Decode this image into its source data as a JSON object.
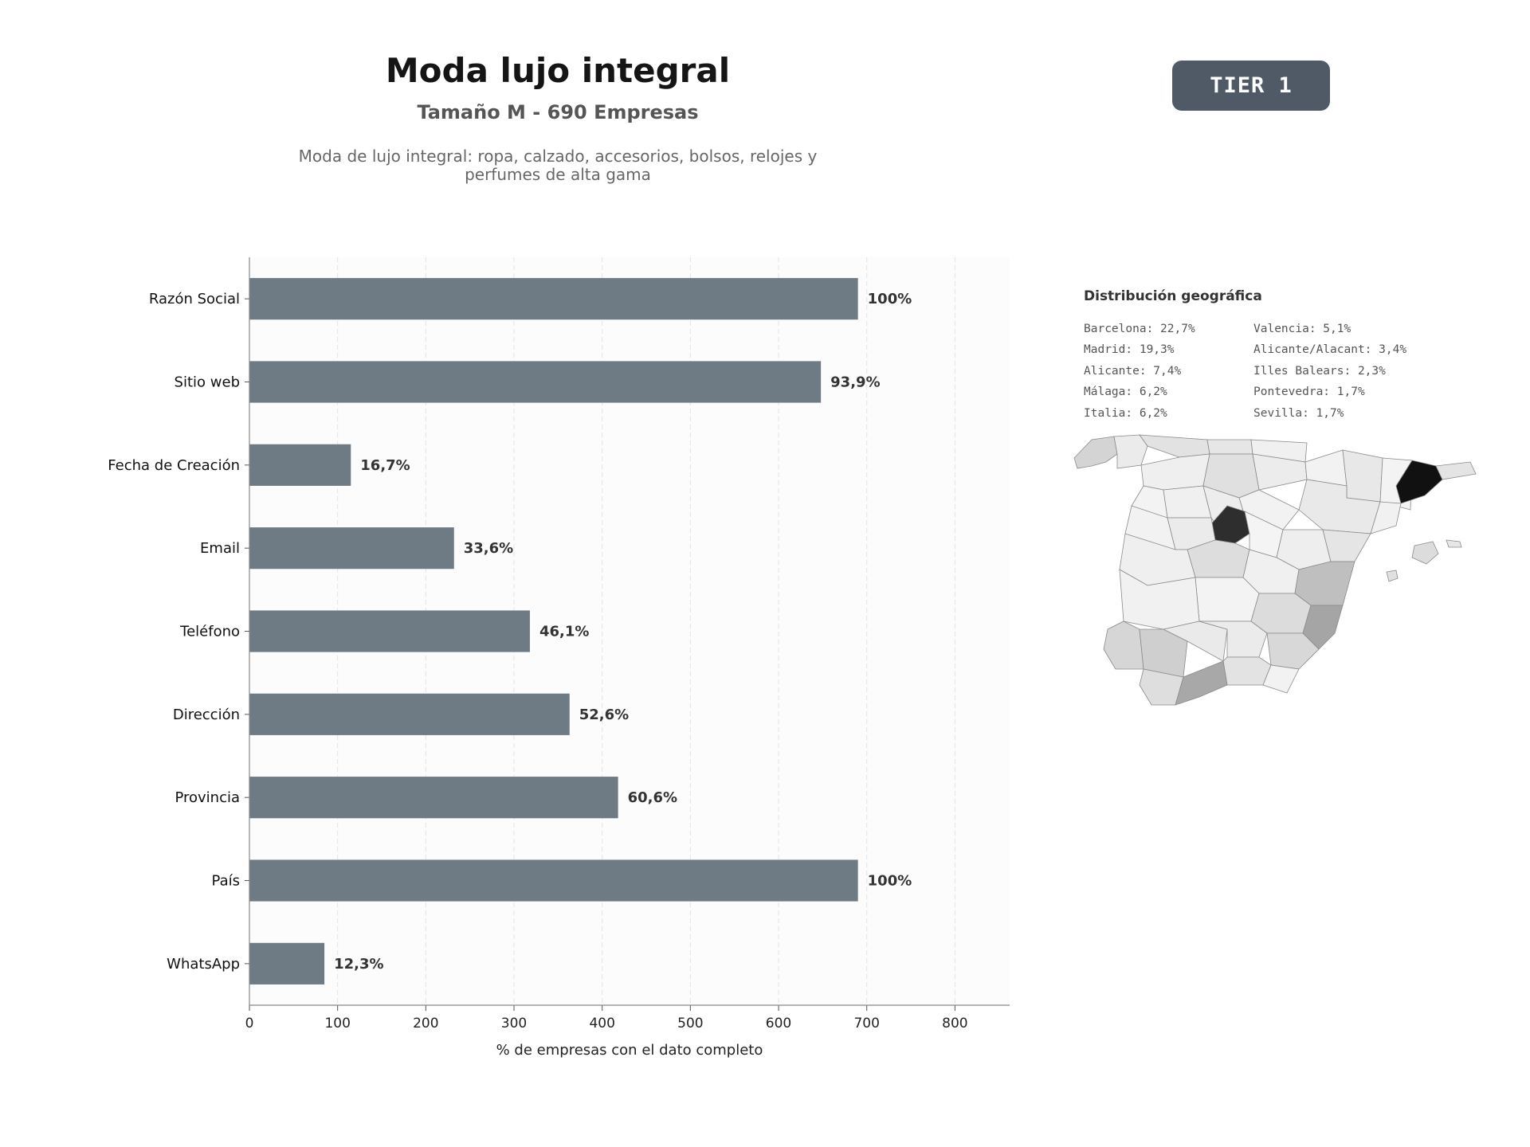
{
  "header": {
    "title": "Moda lujo integral",
    "subtitle": "Tamaño M - 690 Empresas",
    "description": "Moda de lujo integral: ropa, calzado, accesorios, bolsos, relojes y perfumes de alta gama",
    "tier": "TIER 1"
  },
  "chart_data": {
    "type": "bar",
    "orientation": "horizontal",
    "title": "",
    "xlabel": "% de empresas con el dato completo",
    "ylabel": "",
    "xlim": [
      0,
      862
    ],
    "xticks": [
      0,
      100,
      200,
      300,
      400,
      500,
      600,
      700,
      800
    ],
    "grid": "vertical-dashed",
    "categories": [
      "Razón Social",
      "Sitio web",
      "Fecha de Creación",
      "Email",
      "Teléfono",
      "Dirección",
      "Provincia",
      "País",
      "WhatsApp"
    ],
    "values": [
      690,
      648,
      115,
      232,
      318,
      363,
      418,
      690,
      85
    ],
    "labels": [
      "100%",
      "93,9%",
      "16,7%",
      "33,6%",
      "46,1%",
      "52,6%",
      "60,6%",
      "100%",
      "12,3%"
    ],
    "bar_color": "#6e7a84"
  },
  "geo": {
    "title": "Distribución geográfica",
    "columns": [
      [
        "Barcelona: 22,7%",
        "Madrid: 19,3%",
        "Alicante: 7,4%",
        "Málaga: 6,2%",
        "Italia: 6,2%"
      ],
      [
        "Valencia: 5,1%",
        "Alicante/Alacant: 3,4%",
        "Illes Balears: 2,3%",
        "Pontevedra: 1,7%",
        "Sevilla: 1,7%"
      ]
    ]
  }
}
